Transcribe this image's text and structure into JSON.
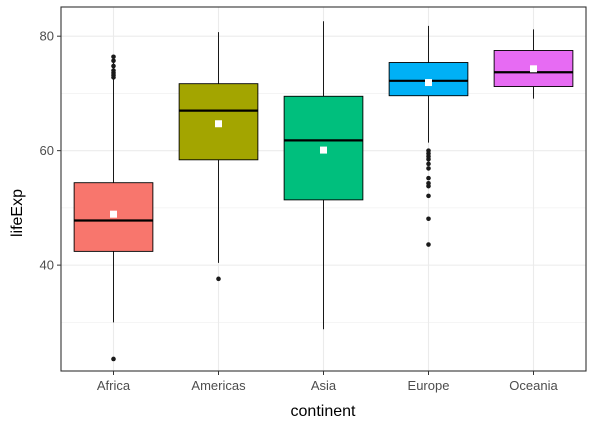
{
  "chart_data": {
    "type": "boxplot",
    "xlabel": "continent",
    "ylabel": "lifeExp",
    "ylim": [
      21.5,
      85.1
    ],
    "y_ticks": [
      40,
      60,
      80
    ],
    "y_tick_labels": [
      "40",
      "60",
      "80"
    ],
    "grid": true,
    "theme": "bw",
    "categories": [
      "Africa",
      "Americas",
      "Asia",
      "Europe",
      "Oceania"
    ],
    "boxes": [
      {
        "category": "Africa",
        "q1": 42.4,
        "median": 47.8,
        "q3": 54.4,
        "whisker_low": 30.0,
        "whisker_high": 76.4,
        "mean": 48.9,
        "outliers": [
          23.6,
          72.8,
          73.2,
          73.6,
          74.0,
          74.8,
          75.7,
          76.4
        ],
        "color": "#F8766D"
      },
      {
        "category": "Americas",
        "q1": 58.4,
        "median": 67.0,
        "q3": 71.7,
        "whisker_low": 40.4,
        "whisker_high": 80.7,
        "mean": 64.7,
        "outliers": [
          37.6
        ],
        "color": "#A3A500"
      },
      {
        "category": "Asia",
        "q1": 51.4,
        "median": 61.8,
        "q3": 69.5,
        "whisker_low": 28.8,
        "whisker_high": 82.6,
        "mean": 60.1,
        "outliers": [],
        "color": "#00BF7D"
      },
      {
        "category": "Europe",
        "q1": 69.6,
        "median": 72.2,
        "q3": 75.4,
        "whisker_low": 61.4,
        "whisker_high": 81.8,
        "mean": 71.9,
        "outliers": [
          43.6,
          48.1,
          52.1,
          53.8,
          54.3,
          55.2,
          56.9,
          57.7,
          58.5,
          59.0,
          59.5,
          60.0
        ],
        "color": "#00B0F6"
      },
      {
        "category": "Oceania",
        "q1": 71.2,
        "median": 73.7,
        "q3": 77.5,
        "whisker_low": 69.1,
        "whisker_high": 81.2,
        "mean": 74.3,
        "outliers": [],
        "color": "#E76BF3"
      }
    ]
  }
}
